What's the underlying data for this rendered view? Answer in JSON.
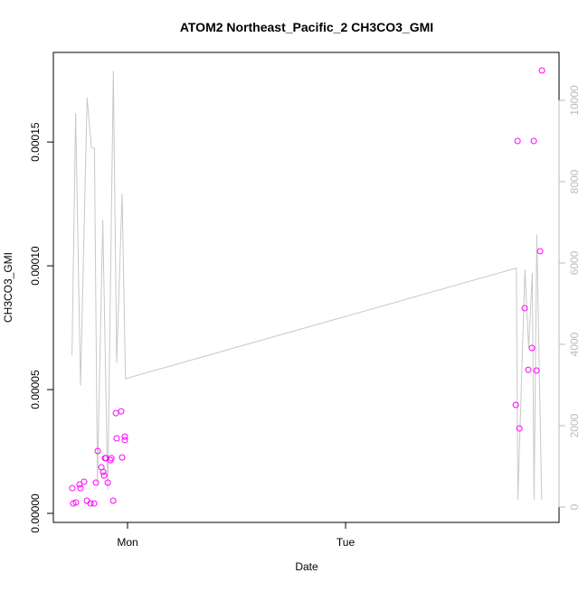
{
  "chart_data": {
    "type": "scatter+line",
    "title": "ATOM2 Northeast_Pacific_2 CH3CO3_GMI",
    "xlabel": "Date",
    "ylabel": "CH3CO3_GMI",
    "xlim": [
      "Sun 15:50",
      "Tue 23:30"
    ],
    "ylim": [
      -3.65e-06,
      0.0001862
    ],
    "y2lim": [
      -378,
      11178
    ],
    "x_ticks": [
      {
        "at": "Mon 00:00",
        "label": "Mon"
      },
      {
        "at": "Tue 00:00",
        "label": "Tue"
      }
    ],
    "y_ticks": [
      {
        "value": 0,
        "label": "0.00000"
      },
      {
        "value": 5e-05,
        "label": "0.00005"
      },
      {
        "value": 0.0001,
        "label": "0.00010"
      },
      {
        "value": 0.00015,
        "label": "0.00015"
      }
    ],
    "y2_ticks": [
      {
        "value": 0,
        "label": "0"
      },
      {
        "value": 2000,
        "label": "2000"
      },
      {
        "value": 4000,
        "label": "4000"
      },
      {
        "value": 6000,
        "label": "6000"
      },
      {
        "value": 8000,
        "label": "8000"
      },
      {
        "value": 10000,
        "label": "10000"
      }
    ],
    "grid": false,
    "colors": {
      "points": "#ff00ff",
      "line": "#c8c8c8",
      "right_axis": "#bbbbbb"
    },
    "points": {
      "axis": "left",
      "x": [
        "Sun 17:55",
        "Sun 18:01",
        "Sun 18:19",
        "Sun 18:43",
        "Sun 18:49",
        "Sun 19:13",
        "Sun 19:31",
        "Sun 19:55",
        "Sun 20:19",
        "Sun 20:31",
        "Sun 20:43",
        "Sun 21:07",
        "Sun 21:19",
        "Sun 21:25",
        "Sun 21:31",
        "Sun 21:37",
        "Sun 21:49",
        "Sun 22:07",
        "Sun 22:13",
        "Sun 22:25",
        "Sun 22:43",
        "Sun 22:48",
        "Sun 23:18",
        "Sun 23:24",
        "Sun 23:42",
        "Sun 23:42",
        "Tue 18:44",
        "Tue 18:56",
        "Tue 19:08",
        "Tue 19:43",
        "Tue 20:07",
        "Tue 20:31",
        "Tue 20:43",
        "Tue 21:01",
        "Tue 21:25",
        "Tue 21:37"
      ],
      "y": [
        1.02e-05,
        4e-06,
        4.4e-06,
        1.17e-05,
        1.02e-05,
        1.28e-05,
        5.1e-06,
        4e-06,
        4e-06,
        1.24e-05,
        2.52e-05,
        1.86e-05,
        1.68e-05,
        1.53e-05,
        2.23e-05,
        2.23e-05,
        1.24e-05,
        2.15e-05,
        2.23e-05,
        5.1e-06,
        4.05e-05,
        3.03e-05,
        4.12e-05,
        2.26e-05,
        3.1e-05,
        2.96e-05,
        4.38e-05,
        0.0001504,
        3.43e-05,
        8.29e-05,
        5.8e-05,
        6.68e-05,
        0.0001504,
        5.77e-05,
        0.0001059,
        0.0001789
      ]
    },
    "line": {
      "axis": "right",
      "x": [
        "Sun 17:53",
        "Sun 18:17",
        "Sun 18:49",
        "Sun 19:33",
        "Sun 20:01",
        "Sun 20:21",
        "Sun 20:41",
        "Sun 21:16",
        "Sun 21:49",
        "Sun 22:26",
        "Sun 22:48",
        "Sun 23:24",
        "Sun 23:46",
        "Tue 18:48",
        "Tue 18:58",
        "Tue 19:45",
        "Tue 20:09",
        "Tue 20:33",
        "Tue 20:45",
        "Tue 21:03",
        "Tue 21:35"
      ],
      "y": [
        3740,
        9690,
        2985,
        10070,
        8845,
        8820,
        620,
        7065,
        430,
        10725,
        3540,
        7710,
        3155,
        5875,
        185,
        5840,
        3910,
        5760,
        185,
        6705,
        185
      ]
    }
  }
}
